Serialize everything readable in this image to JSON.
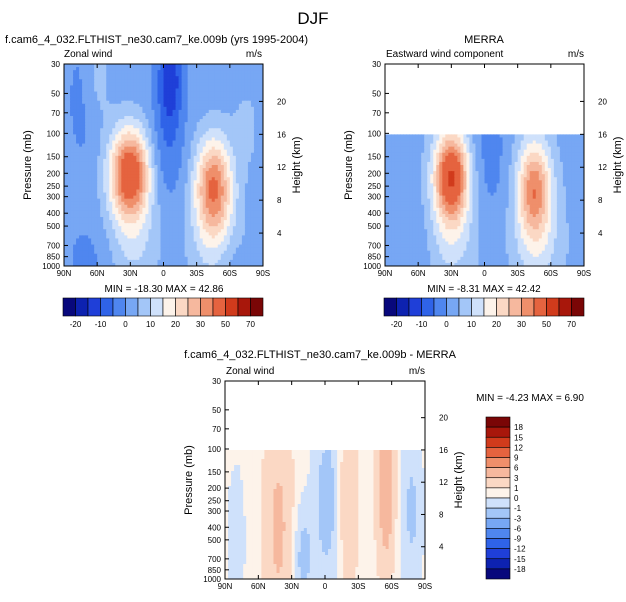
{
  "page": {
    "title": "DJF"
  },
  "colors": {
    "scale": [
      "#08087c",
      "#0d22b0",
      "#1f3fd8",
      "#2f63e8",
      "#4f86ef",
      "#77a7f4",
      "#a3c6f8",
      "#cfe1fb",
      "#fdf3ea",
      "#fbd8c4",
      "#f6b89e",
      "#ef8f6b",
      "#e5633f",
      "#d13b1c",
      "#a8170b",
      "#7a0606"
    ],
    "diff": [
      "#08087c",
      "#0d22b0",
      "#1f3fd8",
      "#2f63e8",
      "#4f86ef",
      "#77a7f4",
      "#a3c6f8",
      "#cfe1fb",
      "#fdf3ea",
      "#fbd8c4",
      "#f6b89e",
      "#ef8f6b",
      "#e5633f",
      "#d13b1c",
      "#a8170b",
      "#7a0606"
    ]
  },
  "chart_data": [
    {
      "type": "heatmap",
      "id": "model",
      "title": "f.cam6_4_032.FLTHIST_ne30.cam7_ke.009b (yrs 1995-2004)",
      "left_label": "Zonal wind",
      "units": "m/s",
      "ylabel": "Pressure (mb)",
      "y2label": "Height (km)",
      "x_ticks": [
        "90N",
        "60N",
        "30N",
        "0",
        "30S",
        "60S",
        "90S"
      ],
      "y_ticks": [
        "30",
        "50",
        "70",
        "100",
        "150",
        "200",
        "250",
        "300",
        "400",
        "500",
        "700",
        "850",
        "1000"
      ],
      "y2_ticks": [
        "20",
        "16",
        "12",
        "8",
        "4"
      ],
      "min_max": "MIN = -18.30   MAX = 42.86",
      "min": -18.3,
      "max": 42.86,
      "jets": [
        {
          "lat": 30,
          "p": 200,
          "value": 42.86
        },
        {
          "lat": -45,
          "p": 250,
          "value": 33
        }
      ]
    },
    {
      "type": "heatmap",
      "id": "obs",
      "title": "MERRA",
      "left_label": "Eastward wind component",
      "units": "m/s",
      "ylabel": "Pressure (mb)",
      "y2label": "Height (km)",
      "x_ticks": [
        "90N",
        "60N",
        "30N",
        "0",
        "30S",
        "60S",
        "90S"
      ],
      "y_ticks": [
        "30",
        "50",
        "70",
        "100",
        "150",
        "200",
        "250",
        "300",
        "400",
        "500",
        "700",
        "850",
        "1000"
      ],
      "y2_ticks": [
        "20",
        "16",
        "12",
        "8",
        "4"
      ],
      "min_max": "MIN = -8.31   MAX = 42.42",
      "min": -8.31,
      "max": 42.42,
      "data_top_pressure": 100,
      "jets": [
        {
          "lat": 30,
          "p": 200,
          "value": 42.42
        },
        {
          "lat": -45,
          "p": 250,
          "value": 30
        }
      ]
    },
    {
      "type": "heatmap",
      "id": "diff",
      "title": "f.cam6_4_032.FLTHIST_ne30.cam7_ke.009b - MERRA",
      "left_label": "Zonal wind",
      "units": "m/s",
      "ylabel": "Pressure (mb)",
      "y2label": "Height (km)",
      "x_ticks": [
        "90N",
        "60N",
        "30N",
        "0",
        "30S",
        "60S",
        "90S"
      ],
      "y_ticks": [
        "30",
        "50",
        "70",
        "100",
        "150",
        "200",
        "250",
        "300",
        "400",
        "500",
        "700",
        "850",
        "1000"
      ],
      "y2_ticks": [
        "20",
        "16",
        "12",
        "8",
        "4"
      ],
      "min_max": "MIN = -4.23   MAX =  6.90",
      "min": -4.23,
      "max": 6.9,
      "data_top_pressure": 100
    }
  ],
  "colorbar_main": {
    "labels": [
      "-20",
      "-10",
      "0",
      "10",
      "20",
      "30",
      "50",
      "70"
    ],
    "levels": [
      -25,
      -20,
      -15,
      -10,
      -5,
      0,
      5,
      10,
      15,
      20,
      25,
      30,
      40,
      50,
      60,
      70
    ]
  },
  "colorbar_diff": {
    "labels": [
      "18",
      "15",
      "12",
      "9",
      "6",
      "3",
      "1",
      "0",
      "-1",
      "-3",
      "-6",
      "-9",
      "-12",
      "-15",
      "-18"
    ],
    "levels": [
      -18,
      -15,
      -12,
      -9,
      -6,
      -3,
      -1,
      0,
      1,
      3,
      6,
      9,
      12,
      15,
      18
    ]
  }
}
